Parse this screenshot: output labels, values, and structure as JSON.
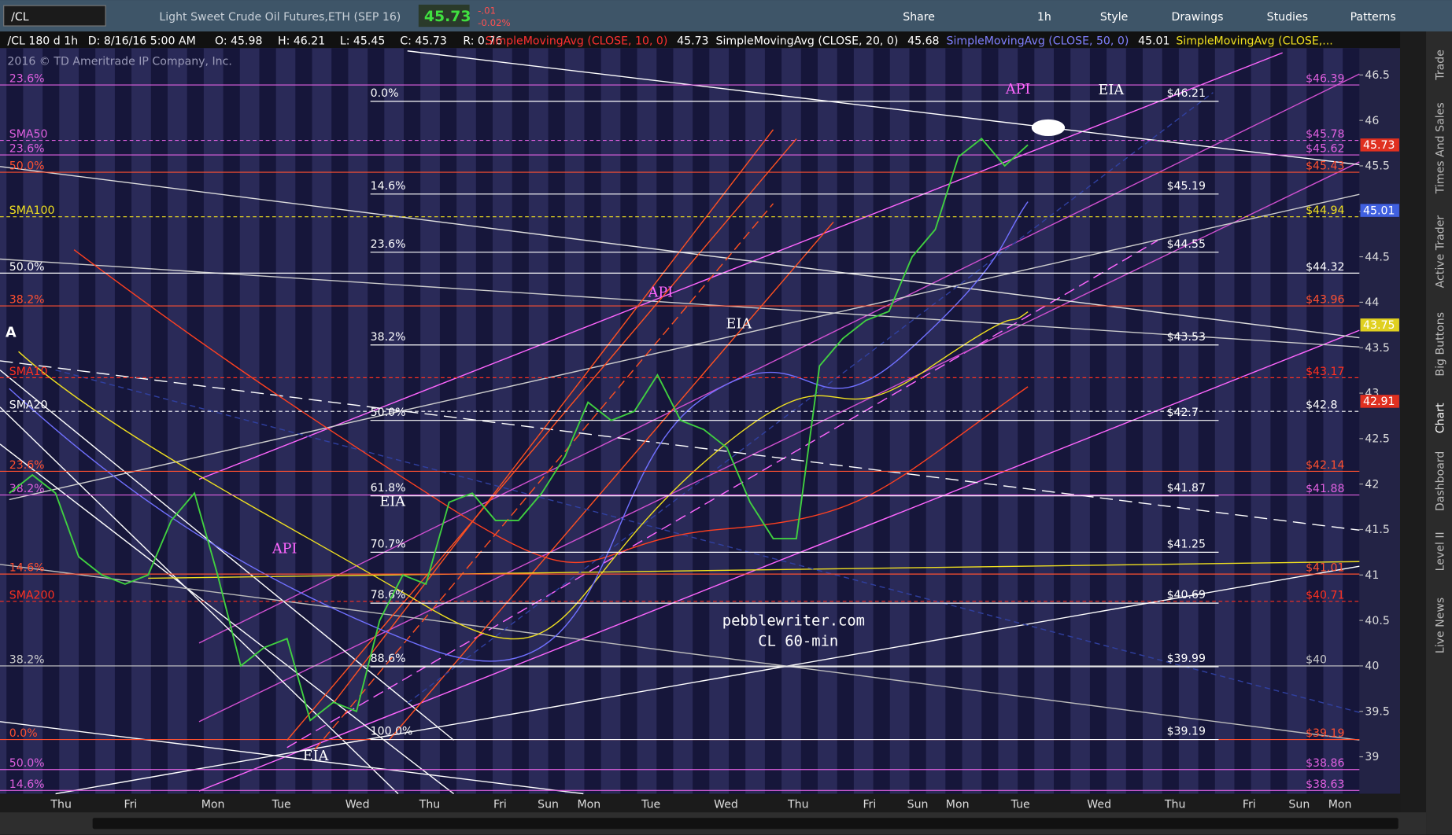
{
  "toolbar": {
    "symbol": "/CL",
    "description": "Light Sweet Crude Oil Futures,ETH (SEP 16)",
    "last": "45.73",
    "change": "-.01",
    "change_pct": "-0.02%",
    "buttons": [
      "Share",
      "1h",
      "Style",
      "Drawings",
      "Studies",
      "Patterns"
    ]
  },
  "header": {
    "items": [
      "/CL 180 d 1h",
      "D: 8/16/16 5:00 AM",
      "O: 45.98",
      "H: 46.21",
      "L: 45.45",
      "C: 45.73",
      "R: 0.76"
    ],
    "studies": [
      {
        "name": "SimpleMovingAvg (CLOSE, 10, 0)",
        "value": "45.73",
        "color": "#ff3030"
      },
      {
        "name": "SimpleMovingAvg (CLOSE, 20, 0)",
        "value": "45.68",
        "color": "#ffffff"
      },
      {
        "name": "SimpleMovingAvg (CLOSE, 50, 0)",
        "value": "45.01",
        "color": "#8080ff"
      },
      {
        "name": "SimpleMovingAvg (CLOSE,...",
        "value": null,
        "color": "#f0e020"
      }
    ]
  },
  "copyright": "2016 © TD Ameritrade IP Company, Inc.",
  "price_axis": {
    "ylim": [
      38.593,
      46.795
    ],
    "ticks": [
      39,
      39.5,
      40,
      40.5,
      41,
      41.5,
      42,
      42.5,
      43,
      43.5,
      44,
      44.5,
      45,
      45.5,
      46,
      46.5
    ]
  },
  "badges": [
    {
      "value": 45.73,
      "color": "#e03020"
    },
    {
      "value": 45.01,
      "color": "#4060e0"
    },
    {
      "value": 43.75,
      "color": "#e0d020"
    },
    {
      "value": 42.91,
      "color": "#e03020"
    }
  ],
  "levels": [
    {
      "label": "$46.39",
      "price": 46.39,
      "color": "#e060e0",
      "note": "23.6%",
      "dash": false
    },
    {
      "label": "$45.78",
      "price": 45.78,
      "color": "#e060e0",
      "note": "SMA50",
      "dash": true
    },
    {
      "label": "$45.62",
      "price": 45.62,
      "color": "#e060e0",
      "note": "23.6%",
      "dash": false
    },
    {
      "label": "$45.43",
      "price": 45.43,
      "color": "#ff5030",
      "note": "50.0%",
      "dash": false
    },
    {
      "label": "$44.94",
      "price": 44.94,
      "color": "#f0e020",
      "note": "SMA100",
      "dash": true
    },
    {
      "label": "$44.32",
      "price": 44.32,
      "color": "#ffffff",
      "note": "50.0%",
      "dash": false
    },
    {
      "label": "$43.96",
      "price": 43.96,
      "color": "#ff5030",
      "note": "38.2%",
      "dash": false
    },
    {
      "label": "$43.17",
      "price": 43.17,
      "color": "#ff3020",
      "note": "SMA10",
      "dash": true
    },
    {
      "label": "$42.8",
      "price": 42.8,
      "color": "#ffffff",
      "note": "SMA20",
      "dash": true
    },
    {
      "label": "$42.14",
      "price": 42.14,
      "color": "#ff5030",
      "note": "23.6%",
      "dash": false
    },
    {
      "label": "$41.88",
      "price": 41.88,
      "color": "#e060e0",
      "note": "38.2%",
      "dash": false
    },
    {
      "label": "$41.01",
      "price": 41.01,
      "color": "#ff5030",
      "note": "14.6%",
      "dash": false
    },
    {
      "label": "$40.71",
      "price": 40.71,
      "color": "#ff3020",
      "note": "SMA200",
      "dash": true
    },
    {
      "label": "$40",
      "price": 40,
      "color": "#cccccc",
      "note": "38.2%",
      "dash": false
    },
    {
      "label": "$39.19",
      "price": 39.19,
      "color": "#ff5030",
      "note": "0.0%",
      "dash": false
    },
    {
      "label": "$38.86",
      "price": 38.86,
      "color": "#e060e0",
      "note": "50.0%",
      "dash": false
    },
    {
      "label": "$38.63",
      "price": 38.63,
      "color": "#e060e0",
      "note": "14.6%",
      "dash": false
    }
  ],
  "fibs": [
    {
      "pct": "0.0%",
      "label": "$46.21",
      "price": 46.21
    },
    {
      "pct": "14.6%",
      "label": "$45.19",
      "price": 45.19
    },
    {
      "pct": "23.6%",
      "label": "$44.55",
      "price": 44.55
    },
    {
      "pct": "38.2%",
      "label": "$43.53",
      "price": 43.53
    },
    {
      "pct": "50.0%",
      "label": "$42.7",
      "price": 42.7
    },
    {
      "pct": "61.8%",
      "label": "$41.87",
      "price": 41.87
    },
    {
      "pct": "70.7%",
      "label": "$41.25",
      "price": 41.25
    },
    {
      "pct": "78.6%",
      "label": "$40.69",
      "price": 40.69
    },
    {
      "pct": "88.6%",
      "label": "$39.99",
      "price": 39.99
    },
    {
      "pct": "100.0%",
      "label": "$39.19",
      "price": 39.19
    }
  ],
  "price_trace": {
    "values": [
      41.9,
      42.1,
      41.9,
      41.2,
      41.0,
      40.9,
      41.0,
      41.6,
      41.9,
      41.0,
      40.0,
      40.2,
      40.3,
      39.4,
      39.6,
      39.5,
      40.5,
      41.0,
      40.9,
      41.8,
      41.9,
      41.6,
      41.6,
      41.9,
      42.3,
      42.9,
      42.7,
      42.8,
      43.2,
      42.7,
      42.6,
      42.4,
      41.8,
      41.4,
      41.4,
      43.3,
      43.6,
      43.8,
      43.9,
      44.5,
      44.8,
      45.6,
      45.8,
      45.5,
      45.73
    ]
  },
  "annotations": [
    "API",
    "API",
    "API",
    "EIA",
    "EIA",
    "EIA",
    "EIA",
    "A",
    "pebblewriter.com",
    "CL 60-min"
  ],
  "x_labels": [
    "Thu",
    "Fri",
    "Mon",
    "Tue",
    "Wed",
    "Thu",
    "Fri",
    "Sun",
    "Mon",
    "Tue",
    "Wed",
    "Thu",
    "Fri",
    "Sun",
    "Mon",
    "Tue",
    "Wed",
    "Thu",
    "Fri",
    "Sun",
    "Mon"
  ],
  "side_tabs": [
    "Trade",
    "Times And Sales",
    "Active Trader",
    "Big Buttons",
    "Chart",
    "Dashboard",
    "Level II",
    "Live News"
  ]
}
